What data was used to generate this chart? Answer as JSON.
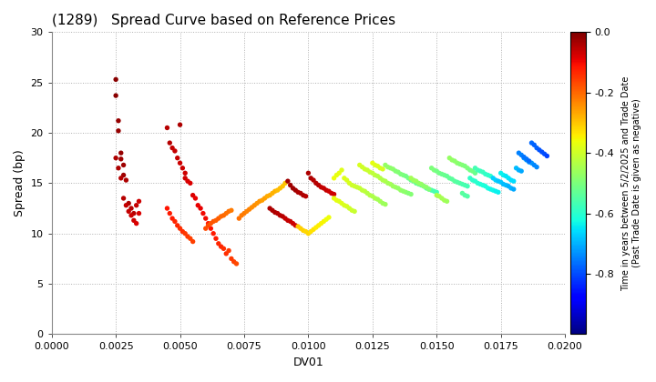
{
  "title": "(1289)   Spread Curve based on Reference Prices",
  "xlabel": "DV01",
  "ylabel": "Spread (bp)",
  "xlim": [
    0.0,
    0.02
  ],
  "ylim": [
    0,
    30
  ],
  "xticks": [
    0.0,
    0.0025,
    0.005,
    0.0075,
    0.01,
    0.0125,
    0.015,
    0.0175,
    0.02
  ],
  "yticks": [
    0,
    5,
    10,
    15,
    20,
    25,
    30
  ],
  "colorbar_label": "Time in years between 5/2/2025 and Trade Date\n(Past Trade Date is given as negative)",
  "cmap": "jet",
  "clim": [
    -1.0,
    0.0
  ],
  "cticks": [
    0.0,
    -0.2,
    -0.4,
    -0.6,
    -0.8
  ],
  "background_color": "#ffffff",
  "grid_color": "#b0b0b0",
  "marker_size": 15,
  "points": [
    [
      0.0025,
      25.3,
      -0.01
    ],
    [
      0.0025,
      23.7,
      -0.01
    ],
    [
      0.0026,
      21.2,
      -0.02
    ],
    [
      0.0026,
      20.2,
      -0.02
    ],
    [
      0.0027,
      18.0,
      -0.02
    ],
    [
      0.0027,
      17.4,
      -0.03
    ],
    [
      0.0028,
      16.8,
      -0.03
    ],
    [
      0.0028,
      15.8,
      -0.03
    ],
    [
      0.0029,
      15.3,
      -0.04
    ],
    [
      0.003,
      13.0,
      -0.04
    ],
    [
      0.0031,
      12.5,
      -0.05
    ],
    [
      0.0032,
      12.0,
      -0.05
    ],
    [
      0.0033,
      12.8,
      -0.06
    ],
    [
      0.0034,
      13.2,
      -0.07
    ],
    [
      0.0025,
      17.5,
      -0.04
    ],
    [
      0.0026,
      16.5,
      -0.04
    ],
    [
      0.0027,
      15.5,
      -0.05
    ],
    [
      0.0028,
      13.5,
      -0.05
    ],
    [
      0.0029,
      12.8,
      -0.06
    ],
    [
      0.003,
      12.2,
      -0.06
    ],
    [
      0.0031,
      11.8,
      -0.07
    ],
    [
      0.0032,
      11.3,
      -0.07
    ],
    [
      0.0033,
      11.0,
      -0.08
    ],
    [
      0.0034,
      12.0,
      -0.08
    ],
    [
      0.0045,
      20.5,
      -0.05
    ],
    [
      0.0046,
      19.0,
      -0.05
    ],
    [
      0.0047,
      18.5,
      -0.06
    ],
    [
      0.0048,
      18.2,
      -0.06
    ],
    [
      0.0049,
      17.5,
      -0.06
    ],
    [
      0.005,
      17.0,
      -0.07
    ],
    [
      0.005,
      20.8,
      -0.04
    ],
    [
      0.0051,
      16.5,
      -0.07
    ],
    [
      0.0052,
      15.5,
      -0.07
    ],
    [
      0.0052,
      16.0,
      -0.07
    ],
    [
      0.0053,
      15.2,
      -0.08
    ],
    [
      0.0054,
      15.0,
      -0.08
    ],
    [
      0.0055,
      13.8,
      -0.08
    ],
    [
      0.0056,
      13.5,
      -0.09
    ],
    [
      0.0057,
      12.8,
      -0.09
    ],
    [
      0.0058,
      12.5,
      -0.09
    ],
    [
      0.0059,
      12.0,
      -0.1
    ],
    [
      0.006,
      11.5,
      -0.1
    ],
    [
      0.0061,
      11.0,
      -0.11
    ],
    [
      0.0062,
      10.5,
      -0.11
    ],
    [
      0.0063,
      10.0,
      -0.12
    ],
    [
      0.0064,
      9.5,
      -0.12
    ],
    [
      0.0065,
      9.0,
      -0.13
    ],
    [
      0.0066,
      8.7,
      -0.13
    ],
    [
      0.0067,
      8.5,
      -0.14
    ],
    [
      0.0068,
      8.0,
      -0.14
    ],
    [
      0.0069,
      8.3,
      -0.15
    ],
    [
      0.007,
      7.5,
      -0.15
    ],
    [
      0.0071,
      7.2,
      -0.16
    ],
    [
      0.0072,
      7.0,
      -0.17
    ],
    [
      0.0045,
      12.5,
      -0.11
    ],
    [
      0.0046,
      12.0,
      -0.12
    ],
    [
      0.0047,
      11.5,
      -0.12
    ],
    [
      0.0048,
      11.2,
      -0.13
    ],
    [
      0.0049,
      10.8,
      -0.13
    ],
    [
      0.005,
      10.5,
      -0.14
    ],
    [
      0.0051,
      10.2,
      -0.14
    ],
    [
      0.0052,
      10.0,
      -0.15
    ],
    [
      0.0053,
      9.7,
      -0.15
    ],
    [
      0.0054,
      9.5,
      -0.16
    ],
    [
      0.0055,
      9.2,
      -0.16
    ],
    [
      0.006,
      10.5,
      -0.17
    ],
    [
      0.0061,
      10.8,
      -0.17
    ],
    [
      0.0062,
      11.0,
      -0.18
    ],
    [
      0.0063,
      11.2,
      -0.18
    ],
    [
      0.0064,
      11.3,
      -0.19
    ],
    [
      0.0065,
      11.5,
      -0.19
    ],
    [
      0.0066,
      11.7,
      -0.2
    ],
    [
      0.0067,
      11.8,
      -0.2
    ],
    [
      0.0068,
      12.0,
      -0.21
    ],
    [
      0.0069,
      12.2,
      -0.21
    ],
    [
      0.007,
      12.3,
      -0.22
    ],
    [
      0.0073,
      11.5,
      -0.21
    ],
    [
      0.0074,
      11.8,
      -0.22
    ],
    [
      0.0075,
      12.0,
      -0.22
    ],
    [
      0.0076,
      12.2,
      -0.23
    ],
    [
      0.0077,
      12.4,
      -0.23
    ],
    [
      0.0078,
      12.6,
      -0.24
    ],
    [
      0.0079,
      12.8,
      -0.24
    ],
    [
      0.008,
      13.0,
      -0.25
    ],
    [
      0.0081,
      13.2,
      -0.25
    ],
    [
      0.0082,
      13.3,
      -0.26
    ],
    [
      0.0083,
      13.5,
      -0.26
    ],
    [
      0.0084,
      13.7,
      -0.27
    ],
    [
      0.0085,
      13.8,
      -0.27
    ],
    [
      0.0086,
      14.0,
      -0.28
    ],
    [
      0.0087,
      14.2,
      -0.28
    ],
    [
      0.0088,
      14.3,
      -0.29
    ],
    [
      0.0089,
      14.5,
      -0.29
    ],
    [
      0.009,
      14.7,
      -0.3
    ],
    [
      0.0091,
      15.0,
      -0.3
    ],
    [
      0.0092,
      15.2,
      -0.03
    ],
    [
      0.0093,
      14.8,
      -0.03
    ],
    [
      0.0094,
      14.5,
      -0.03
    ],
    [
      0.0095,
      14.3,
      -0.03
    ],
    [
      0.0096,
      14.1,
      -0.04
    ],
    [
      0.0097,
      14.0,
      -0.04
    ],
    [
      0.0098,
      13.8,
      -0.04
    ],
    [
      0.0099,
      13.7,
      -0.05
    ],
    [
      0.01,
      16.0,
      -0.04
    ],
    [
      0.0101,
      15.5,
      -0.04
    ],
    [
      0.0102,
      15.3,
      -0.05
    ],
    [
      0.0103,
      15.0,
      -0.05
    ],
    [
      0.0104,
      14.8,
      -0.05
    ],
    [
      0.0105,
      14.6,
      -0.06
    ],
    [
      0.0106,
      14.5,
      -0.06
    ],
    [
      0.0107,
      14.3,
      -0.06
    ],
    [
      0.0108,
      14.2,
      -0.07
    ],
    [
      0.0109,
      14.0,
      -0.07
    ],
    [
      0.011,
      13.9,
      -0.07
    ],
    [
      0.0085,
      12.5,
      -0.04
    ],
    [
      0.0086,
      12.3,
      -0.04
    ],
    [
      0.0087,
      12.1,
      -0.04
    ],
    [
      0.0088,
      12.0,
      -0.05
    ],
    [
      0.0089,
      11.8,
      -0.05
    ],
    [
      0.009,
      11.7,
      -0.05
    ],
    [
      0.0091,
      11.5,
      -0.06
    ],
    [
      0.0092,
      11.3,
      -0.06
    ],
    [
      0.0093,
      11.2,
      -0.06
    ],
    [
      0.0094,
      11.0,
      -0.07
    ],
    [
      0.0095,
      10.8,
      -0.07
    ],
    [
      0.0096,
      10.7,
      -0.3
    ],
    [
      0.0097,
      10.5,
      -0.31
    ],
    [
      0.0098,
      10.3,
      -0.31
    ],
    [
      0.0099,
      10.2,
      -0.32
    ],
    [
      0.01,
      10.0,
      -0.32
    ],
    [
      0.0101,
      10.2,
      -0.33
    ],
    [
      0.0102,
      10.4,
      -0.33
    ],
    [
      0.0103,
      10.6,
      -0.34
    ],
    [
      0.0104,
      10.8,
      -0.34
    ],
    [
      0.0105,
      11.0,
      -0.35
    ],
    [
      0.0106,
      11.2,
      -0.35
    ],
    [
      0.0107,
      11.4,
      -0.36
    ],
    [
      0.0108,
      11.6,
      -0.36
    ],
    [
      0.011,
      15.5,
      -0.36
    ],
    [
      0.0111,
      15.8,
      -0.37
    ],
    [
      0.0112,
      16.0,
      -0.37
    ],
    [
      0.0113,
      16.3,
      -0.38
    ],
    [
      0.0114,
      15.5,
      -0.38
    ],
    [
      0.0115,
      15.3,
      -0.39
    ],
    [
      0.0116,
      15.0,
      -0.39
    ],
    [
      0.0117,
      14.8,
      -0.4
    ],
    [
      0.0118,
      14.7,
      -0.4
    ],
    [
      0.0119,
      14.6,
      -0.41
    ],
    [
      0.012,
      14.5,
      -0.41
    ],
    [
      0.0121,
      14.3,
      -0.42
    ],
    [
      0.0122,
      14.2,
      -0.42
    ],
    [
      0.0123,
      14.0,
      -0.43
    ],
    [
      0.0124,
      13.8,
      -0.43
    ],
    [
      0.0125,
      13.7,
      -0.44
    ],
    [
      0.0126,
      13.5,
      -0.44
    ],
    [
      0.0127,
      13.4,
      -0.45
    ],
    [
      0.0128,
      13.2,
      -0.45
    ],
    [
      0.0129,
      13.0,
      -0.46
    ],
    [
      0.013,
      12.9,
      -0.46
    ],
    [
      0.011,
      13.5,
      -0.37
    ],
    [
      0.0111,
      13.3,
      -0.37
    ],
    [
      0.0112,
      13.2,
      -0.38
    ],
    [
      0.0113,
      13.0,
      -0.38
    ],
    [
      0.0114,
      12.8,
      -0.39
    ],
    [
      0.0115,
      12.7,
      -0.39
    ],
    [
      0.0116,
      12.5,
      -0.4
    ],
    [
      0.0117,
      12.3,
      -0.4
    ],
    [
      0.0118,
      12.2,
      -0.41
    ],
    [
      0.012,
      16.8,
      -0.39
    ],
    [
      0.0121,
      16.6,
      -0.4
    ],
    [
      0.0122,
      16.4,
      -0.4
    ],
    [
      0.0123,
      16.3,
      -0.41
    ],
    [
      0.0124,
      16.1,
      -0.41
    ],
    [
      0.0125,
      16.0,
      -0.42
    ],
    [
      0.0126,
      15.8,
      -0.42
    ],
    [
      0.0127,
      15.7,
      -0.43
    ],
    [
      0.0128,
      15.5,
      -0.43
    ],
    [
      0.0129,
      15.3,
      -0.44
    ],
    [
      0.013,
      15.2,
      -0.44
    ],
    [
      0.0131,
      15.0,
      -0.45
    ],
    [
      0.0132,
      14.9,
      -0.45
    ],
    [
      0.0133,
      14.7,
      -0.46
    ],
    [
      0.0134,
      14.6,
      -0.46
    ],
    [
      0.0135,
      14.5,
      -0.47
    ],
    [
      0.0136,
      14.3,
      -0.47
    ],
    [
      0.0137,
      14.2,
      -0.48
    ],
    [
      0.0138,
      14.1,
      -0.48
    ],
    [
      0.0139,
      14.0,
      -0.49
    ],
    [
      0.014,
      13.9,
      -0.49
    ],
    [
      0.0125,
      17.0,
      -0.37
    ],
    [
      0.0126,
      16.8,
      -0.38
    ],
    [
      0.0127,
      16.7,
      -0.38
    ],
    [
      0.0128,
      16.5,
      -0.39
    ],
    [
      0.0129,
      16.4,
      -0.39
    ],
    [
      0.013,
      16.8,
      -0.47
    ],
    [
      0.0131,
      16.6,
      -0.47
    ],
    [
      0.0132,
      16.5,
      -0.48
    ],
    [
      0.0133,
      16.4,
      -0.48
    ],
    [
      0.0134,
      16.2,
      -0.49
    ],
    [
      0.0135,
      16.1,
      -0.49
    ],
    [
      0.0136,
      15.9,
      -0.5
    ],
    [
      0.0137,
      15.8,
      -0.5
    ],
    [
      0.0138,
      15.7,
      -0.51
    ],
    [
      0.0139,
      15.5,
      -0.51
    ],
    [
      0.014,
      15.3,
      -0.52
    ],
    [
      0.0141,
      15.2,
      -0.52
    ],
    [
      0.0142,
      15.0,
      -0.53
    ],
    [
      0.0143,
      14.9,
      -0.53
    ],
    [
      0.0144,
      14.8,
      -0.54
    ],
    [
      0.0145,
      14.7,
      -0.54
    ],
    [
      0.0146,
      14.5,
      -0.55
    ],
    [
      0.0147,
      14.4,
      -0.55
    ],
    [
      0.0148,
      14.3,
      -0.56
    ],
    [
      0.0149,
      14.2,
      -0.56
    ],
    [
      0.015,
      14.1,
      -0.57
    ],
    [
      0.014,
      15.5,
      -0.45
    ],
    [
      0.0141,
      15.3,
      -0.46
    ],
    [
      0.0142,
      15.2,
      -0.46
    ],
    [
      0.0143,
      15.0,
      -0.47
    ],
    [
      0.0144,
      14.9,
      -0.47
    ],
    [
      0.0145,
      14.7,
      -0.48
    ],
    [
      0.0146,
      14.6,
      -0.48
    ],
    [
      0.0147,
      14.4,
      -0.49
    ],
    [
      0.0148,
      16.5,
      -0.5
    ],
    [
      0.0149,
      16.3,
      -0.5
    ],
    [
      0.015,
      16.2,
      -0.51
    ],
    [
      0.0151,
      16.0,
      -0.51
    ],
    [
      0.0152,
      15.9,
      -0.52
    ],
    [
      0.0153,
      15.8,
      -0.52
    ],
    [
      0.0154,
      15.7,
      -0.53
    ],
    [
      0.0155,
      15.5,
      -0.53
    ],
    [
      0.0156,
      15.4,
      -0.54
    ],
    [
      0.0157,
      15.2,
      -0.54
    ],
    [
      0.0158,
      15.1,
      -0.55
    ],
    [
      0.0159,
      15.0,
      -0.55
    ],
    [
      0.016,
      14.9,
      -0.56
    ],
    [
      0.0161,
      14.8,
      -0.56
    ],
    [
      0.0162,
      14.7,
      -0.57
    ],
    [
      0.0155,
      17.5,
      -0.47
    ],
    [
      0.0156,
      17.3,
      -0.47
    ],
    [
      0.0157,
      17.2,
      -0.48
    ],
    [
      0.0158,
      17.0,
      -0.48
    ],
    [
      0.0159,
      16.9,
      -0.49
    ],
    [
      0.016,
      16.8,
      -0.49
    ],
    [
      0.0161,
      16.7,
      -0.5
    ],
    [
      0.0162,
      16.5,
      -0.5
    ],
    [
      0.0163,
      16.3,
      -0.51
    ],
    [
      0.0164,
      16.2,
      -0.51
    ],
    [
      0.0165,
      16.0,
      -0.52
    ],
    [
      0.0163,
      15.5,
      -0.59
    ],
    [
      0.0164,
      15.3,
      -0.59
    ],
    [
      0.0165,
      15.2,
      -0.6
    ],
    [
      0.0166,
      15.0,
      -0.6
    ],
    [
      0.0167,
      14.9,
      -0.61
    ],
    [
      0.0168,
      14.8,
      -0.61
    ],
    [
      0.0169,
      14.7,
      -0.62
    ],
    [
      0.017,
      14.5,
      -0.62
    ],
    [
      0.0171,
      14.4,
      -0.63
    ],
    [
      0.0172,
      14.3,
      -0.63
    ],
    [
      0.0173,
      14.2,
      -0.64
    ],
    [
      0.0174,
      14.1,
      -0.64
    ],
    [
      0.0165,
      16.5,
      -0.57
    ],
    [
      0.0166,
      16.3,
      -0.57
    ],
    [
      0.0167,
      16.2,
      -0.58
    ],
    [
      0.0168,
      16.1,
      -0.58
    ],
    [
      0.0169,
      15.9,
      -0.59
    ],
    [
      0.017,
      15.8,
      -0.59
    ],
    [
      0.0171,
      15.7,
      -0.6
    ],
    [
      0.0172,
      15.5,
      -0.67
    ],
    [
      0.0173,
      15.3,
      -0.67
    ],
    [
      0.0174,
      15.2,
      -0.68
    ],
    [
      0.0175,
      15.1,
      -0.68
    ],
    [
      0.0176,
      14.9,
      -0.69
    ],
    [
      0.0177,
      14.8,
      -0.69
    ],
    [
      0.0178,
      14.7,
      -0.7
    ],
    [
      0.0179,
      14.5,
      -0.7
    ],
    [
      0.018,
      14.4,
      -0.71
    ],
    [
      0.0175,
      16.0,
      -0.64
    ],
    [
      0.0176,
      15.8,
      -0.64
    ],
    [
      0.0177,
      15.7,
      -0.65
    ],
    [
      0.0178,
      15.5,
      -0.65
    ],
    [
      0.0179,
      15.3,
      -0.66
    ],
    [
      0.018,
      15.2,
      -0.66
    ],
    [
      0.0181,
      16.5,
      -0.69
    ],
    [
      0.0182,
      16.3,
      -0.7
    ],
    [
      0.0183,
      16.2,
      -0.71
    ],
    [
      0.0184,
      17.5,
      -0.72
    ],
    [
      0.0185,
      17.3,
      -0.72
    ],
    [
      0.0186,
      17.1,
      -0.73
    ],
    [
      0.0187,
      17.0,
      -0.73
    ],
    [
      0.0188,
      16.8,
      -0.74
    ],
    [
      0.0189,
      16.6,
      -0.74
    ],
    [
      0.0182,
      18.0,
      -0.75
    ],
    [
      0.0183,
      17.8,
      -0.75
    ],
    [
      0.0184,
      17.6,
      -0.76
    ],
    [
      0.0185,
      17.4,
      -0.76
    ],
    [
      0.0186,
      17.2,
      -0.77
    ],
    [
      0.0187,
      19.0,
      -0.77
    ],
    [
      0.0188,
      18.8,
      -0.78
    ],
    [
      0.0189,
      18.5,
      -0.78
    ],
    [
      0.019,
      18.3,
      -0.79
    ],
    [
      0.0191,
      18.1,
      -0.8
    ],
    [
      0.0192,
      17.9,
      -0.8
    ],
    [
      0.0193,
      17.7,
      -0.81
    ],
    [
      0.015,
      13.8,
      -0.44
    ],
    [
      0.0151,
      13.7,
      -0.44
    ],
    [
      0.0152,
      13.5,
      -0.45
    ],
    [
      0.0153,
      13.3,
      -0.45
    ],
    [
      0.0154,
      13.2,
      -0.46
    ],
    [
      0.016,
      14.0,
      -0.54
    ],
    [
      0.0161,
      13.8,
      -0.55
    ],
    [
      0.0162,
      13.7,
      -0.55
    ]
  ]
}
